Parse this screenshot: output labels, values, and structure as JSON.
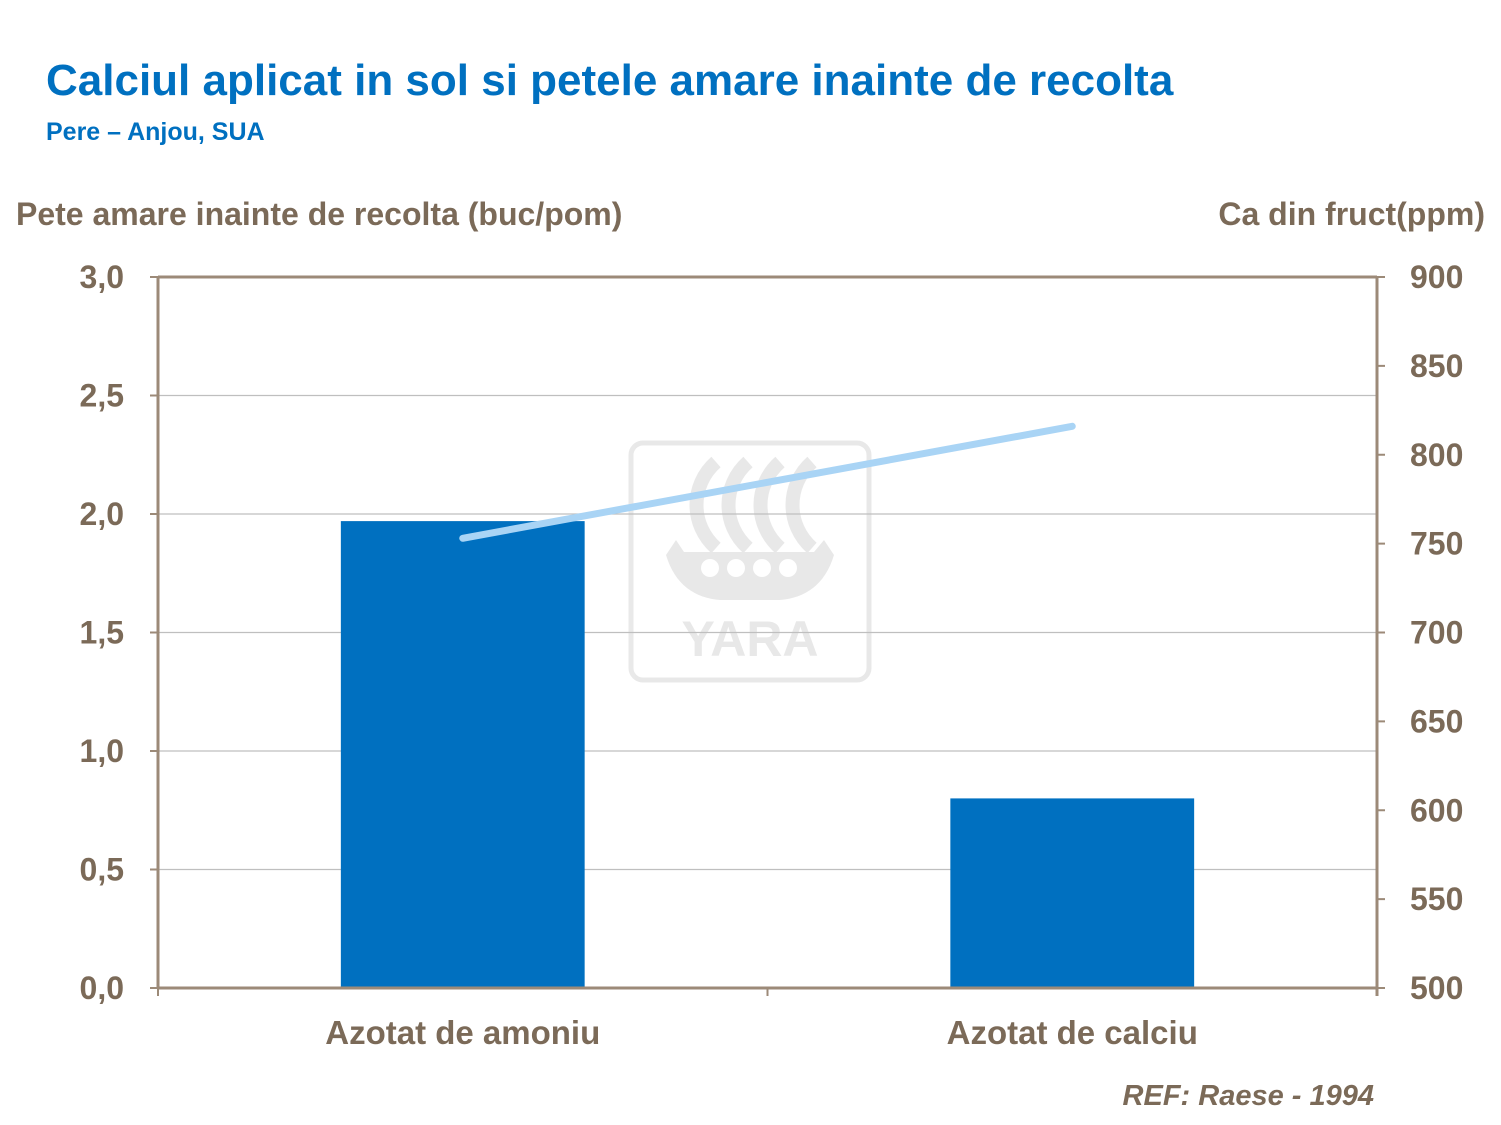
{
  "chart_data": {
    "type": "bar",
    "title": "Calciul aplicat in sol si petele amare inainte de recolta",
    "subtitle": "Pere – Anjou, SUA",
    "categories": [
      "Azotat de amoniu",
      "Azotat de calciu"
    ],
    "series": [
      {
        "type": "bar",
        "axis": "left",
        "values": [
          1.97,
          0.8
        ],
        "color": "#0070C0"
      },
      {
        "type": "line",
        "axis": "right",
        "values": [
          753,
          816
        ],
        "color": "#A9D4F5"
      }
    ],
    "ylabel": "Pete amare inainte de recolta (buc/pom)",
    "ylim": [
      0,
      3
    ],
    "yticks": [
      "0,0",
      "0,5",
      "1,0",
      "1,5",
      "2,0",
      "2,5",
      "3,0"
    ],
    "y2label": "Ca din fruct(ppm)",
    "y2lim": [
      500,
      900
    ],
    "y2ticks": [
      "500",
      "550",
      "600",
      "650",
      "700",
      "750",
      "800",
      "850",
      "900"
    ],
    "grid": true,
    "legend": "none"
  },
  "watermark": {
    "icon": "yara-viking-ship-logo",
    "text": "YARA"
  },
  "footer": {
    "reference": "REF: Raese - 1994"
  }
}
